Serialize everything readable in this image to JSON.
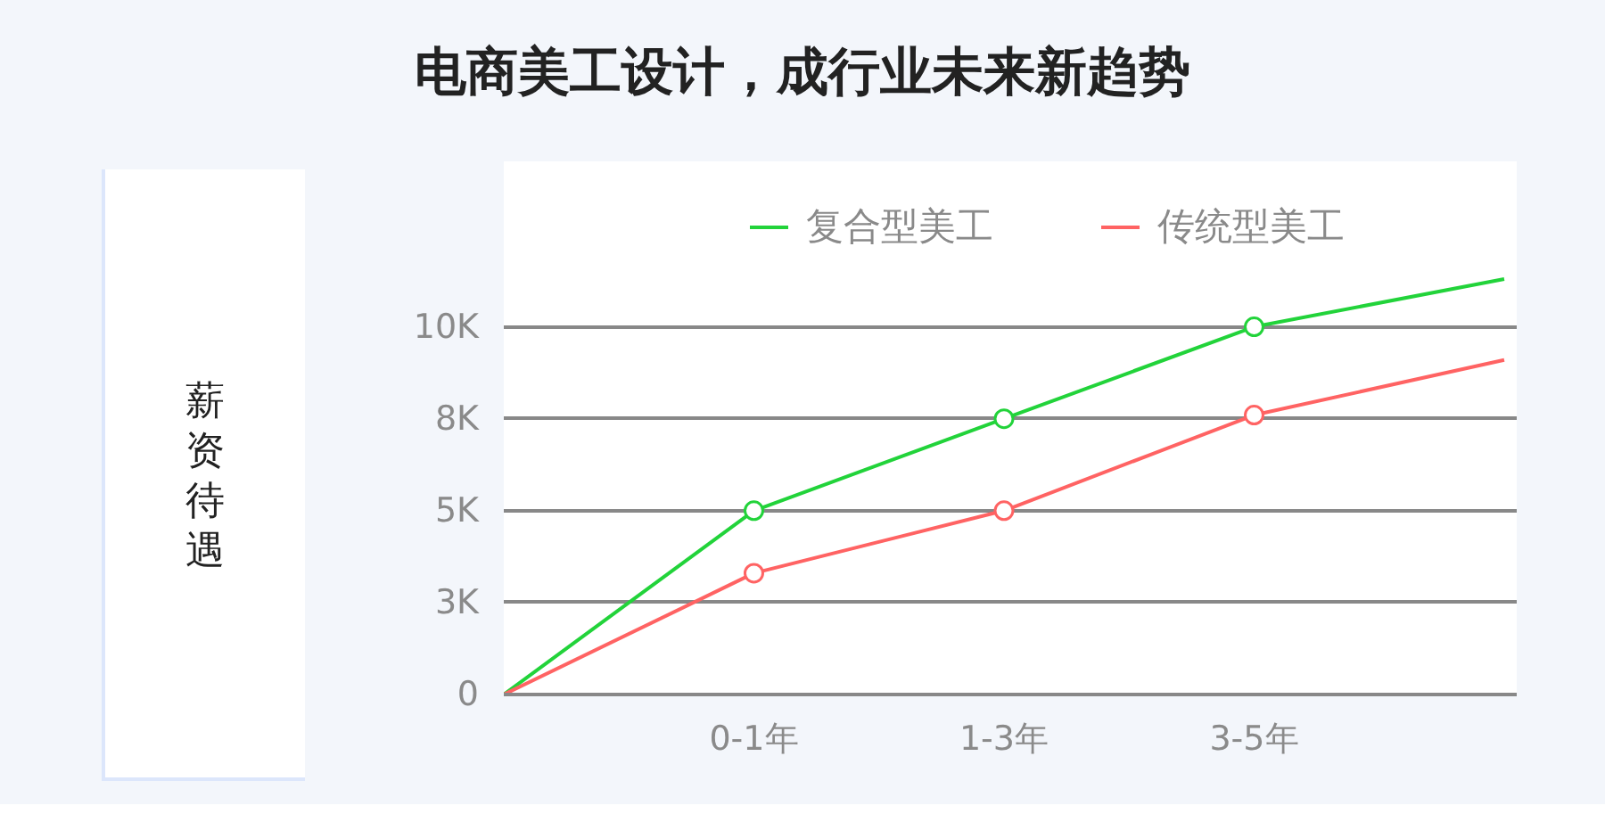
{
  "chart_data": {
    "type": "line",
    "title": "电商美工设计，成行业未来新趋势",
    "ylabel": "薪资待遇",
    "categories": [
      null,
      "0-1年",
      "1-3年",
      "3-5年",
      null
    ],
    "ylim": [
      0,
      14500
    ],
    "yticks": [
      {
        "value": 0,
        "label": "0"
      },
      {
        "value": 2500,
        "label": "3K"
      },
      {
        "value": 5000,
        "label": "5K"
      },
      {
        "value": 7500,
        "label": "8K"
      },
      {
        "value": 10000,
        "label": "10K"
      }
    ],
    "grid": "y",
    "legend": "top",
    "marker": "none",
    "series": [
      {
        "name": "复合型美工",
        "color": "#22d33a",
        "values": [
          0,
          5000,
          7500,
          10000,
          11300
        ]
      },
      {
        "name": "传统型美工",
        "color": "#ff6363",
        "values": [
          0,
          3300,
          5000,
          7600,
          9100
        ]
      },
      {
        "type": "scatter",
        "marker": "circle",
        "color": "#22d33a",
        "values": [
          null,
          5000,
          7500,
          10000,
          null
        ]
      },
      {
        "type": "scatter",
        "marker": "circle",
        "color": "#ff6363",
        "values": [
          null,
          3300,
          5000,
          7600,
          null
        ]
      }
    ]
  }
}
